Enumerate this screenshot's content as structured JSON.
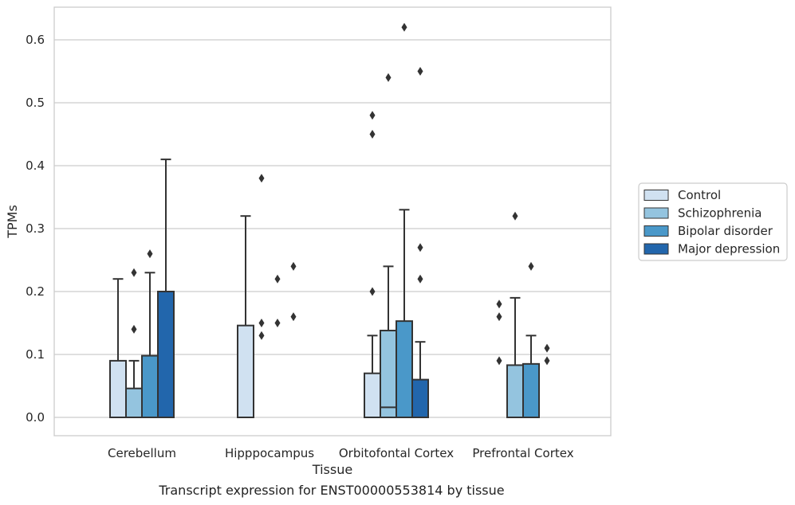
{
  "caption": "Transcript expression for ENST00000553814 by tissue",
  "chart_data": {
    "type": "box",
    "xlabel": "Tissue",
    "ylabel": "TPMs",
    "ylim": [
      -0.03,
      0.65
    ],
    "yticks": [
      "0.0",
      "0.1",
      "0.2",
      "0.3",
      "0.4",
      "0.5",
      "0.6"
    ],
    "grid": true,
    "legend_position": "right",
    "categories": [
      "Cerebellum",
      "Hipppocampus",
      "Orbitofontal Cortex",
      "Prefrontal Cortex"
    ],
    "series": [
      {
        "name": "Control",
        "color": "#d0e1f1",
        "boxes": [
          {
            "q1": 0.0,
            "median": 0.0,
            "q3": 0.09,
            "whisker_low": 0.0,
            "whisker_high": 0.22,
            "outliers": []
          },
          {
            "q1": 0.0,
            "median": 0.0,
            "q3": 0.146,
            "whisker_low": 0.0,
            "whisker_high": 0.32,
            "outliers": []
          },
          {
            "q1": 0.0,
            "median": 0.0,
            "q3": 0.07,
            "whisker_low": 0.0,
            "whisker_high": 0.13,
            "outliers": [
              0.2,
              0.45,
              0.48
            ]
          },
          {
            "q1": 0.0,
            "median": 0.0,
            "q3": 0.0,
            "whisker_low": 0.0,
            "whisker_high": 0.0,
            "outliers": [
              0.09,
              0.16,
              0.18
            ]
          }
        ]
      },
      {
        "name": "Schizophrenia",
        "color": "#94c4df",
        "boxes": [
          {
            "q1": 0.0,
            "median": 0.0,
            "q3": 0.046,
            "whisker_low": 0.0,
            "whisker_high": 0.09,
            "outliers": [
              0.14,
              0.23
            ]
          },
          {
            "q1": 0.0,
            "median": 0.0,
            "q3": 0.0,
            "whisker_low": 0.0,
            "whisker_high": 0.0,
            "outliers": [
              0.13,
              0.15,
              0.38
            ]
          },
          {
            "q1": 0.0,
            "median": 0.016,
            "q3": 0.138,
            "whisker_low": 0.0,
            "whisker_high": 0.24,
            "outliers": [
              0.54
            ]
          },
          {
            "q1": 0.0,
            "median": 0.0,
            "q3": 0.083,
            "whisker_low": 0.0,
            "whisker_high": 0.19,
            "outliers": [
              0.32
            ]
          }
        ]
      },
      {
        "name": "Bipolar disorder",
        "color": "#4a98c9",
        "boxes": [
          {
            "q1": 0.0,
            "median": 0.0,
            "q3": 0.098,
            "whisker_low": 0.0,
            "whisker_high": 0.23,
            "outliers": [
              0.26
            ]
          },
          {
            "q1": 0.0,
            "median": 0.0,
            "q3": 0.0,
            "whisker_low": 0.0,
            "whisker_high": 0.0,
            "outliers": [
              0.15,
              0.22
            ]
          },
          {
            "q1": 0.0,
            "median": 0.0,
            "q3": 0.153,
            "whisker_low": 0.0,
            "whisker_high": 0.33,
            "outliers": [
              0.62
            ]
          },
          {
            "q1": 0.0,
            "median": 0.0,
            "q3": 0.085,
            "whisker_low": 0.0,
            "whisker_high": 0.13,
            "outliers": [
              0.24
            ]
          }
        ]
      },
      {
        "name": "Major depression",
        "color": "#2266ac",
        "boxes": [
          {
            "q1": 0.0,
            "median": 0.0,
            "q3": 0.2,
            "whisker_low": 0.0,
            "whisker_high": 0.41,
            "outliers": []
          },
          {
            "q1": 0.0,
            "median": 0.0,
            "q3": 0.0,
            "whisker_low": 0.0,
            "whisker_high": 0.0,
            "outliers": [
              0.16,
              0.24
            ]
          },
          {
            "q1": 0.0,
            "median": 0.0,
            "q3": 0.06,
            "whisker_low": 0.0,
            "whisker_high": 0.12,
            "outliers": [
              0.22,
              0.27,
              0.55
            ]
          },
          {
            "q1": 0.0,
            "median": 0.0,
            "q3": 0.0,
            "whisker_low": 0.0,
            "whisker_high": 0.0,
            "outliers": [
              0.09,
              0.11
            ]
          }
        ]
      }
    ]
  }
}
